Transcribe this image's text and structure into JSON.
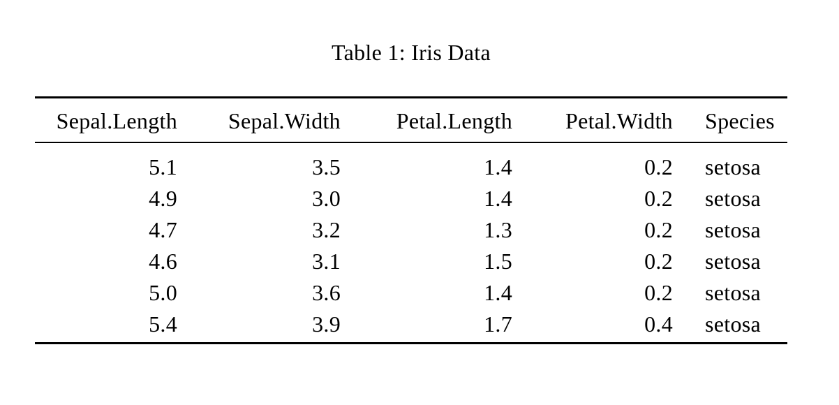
{
  "caption": "Table 1: Iris Data",
  "table": {
    "headers": [
      "Sepal.Length",
      "Sepal.Width",
      "Petal.Length",
      "Petal.Width",
      "Species"
    ],
    "rows": [
      [
        "5.1",
        "3.5",
        "1.4",
        "0.2",
        "setosa"
      ],
      [
        "4.9",
        "3.0",
        "1.4",
        "0.2",
        "setosa"
      ],
      [
        "4.7",
        "3.2",
        "1.3",
        "0.2",
        "setosa"
      ],
      [
        "4.6",
        "3.1",
        "1.5",
        "0.2",
        "setosa"
      ],
      [
        "5.0",
        "3.6",
        "1.4",
        "0.2",
        "setosa"
      ],
      [
        "5.4",
        "3.9",
        "1.7",
        "0.4",
        "setosa"
      ]
    ]
  },
  "colors": {
    "text": "#000000",
    "background": "#ffffff",
    "rule": "#000000"
  }
}
